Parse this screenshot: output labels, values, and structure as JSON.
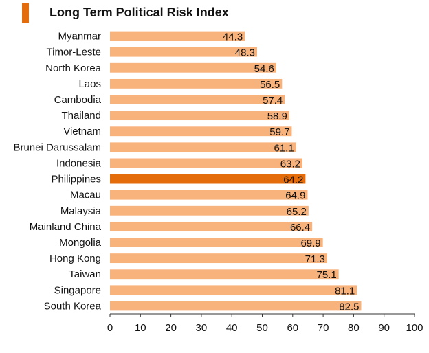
{
  "colors": {
    "bar": "#f8b27c",
    "highlight": "#e46c0a",
    "title_marker": "#e46c0a",
    "text": "#111111",
    "axis": "#333333"
  },
  "chart_data": {
    "type": "bar",
    "orientation": "horizontal",
    "title": "Long Term Political Risk Index",
    "categories": [
      "Myanmar",
      "Timor-Leste",
      "North Korea",
      "Laos",
      "Cambodia",
      "Thailand",
      "Vietnam",
      "Brunei Darussalam",
      "Indonesia",
      "Philippines",
      "Macau",
      "Malaysia",
      "Mainland China",
      "Mongolia",
      "Hong Kong",
      "Taiwan",
      "Singapore",
      "South Korea"
    ],
    "values": [
      44.3,
      48.3,
      54.6,
      56.5,
      57.4,
      58.9,
      59.7,
      61.1,
      63.2,
      64.2,
      64.9,
      65.2,
      66.4,
      69.9,
      71.3,
      75.1,
      81.1,
      82.5
    ],
    "value_labels": [
      "44.3",
      "48.3",
      "54.6",
      "56.5",
      "57.4",
      "58.9",
      "59.7",
      "61.1",
      "63.2",
      "64.2",
      "64.9",
      "65.2",
      "66.4",
      "69.9",
      "71.3",
      "75.1",
      "81.1",
      "82.5"
    ],
    "highlight": "Philippines",
    "xlim": [
      0,
      100
    ],
    "xticks": [
      0,
      10,
      20,
      30,
      40,
      50,
      60,
      70,
      80,
      90,
      100
    ],
    "xtick_labels": [
      "0",
      "10",
      "20",
      "30",
      "40",
      "50",
      "60",
      "70",
      "80",
      "90",
      "100"
    ],
    "xlabel": "",
    "ylabel": "",
    "grid": false,
    "legend": "none"
  }
}
